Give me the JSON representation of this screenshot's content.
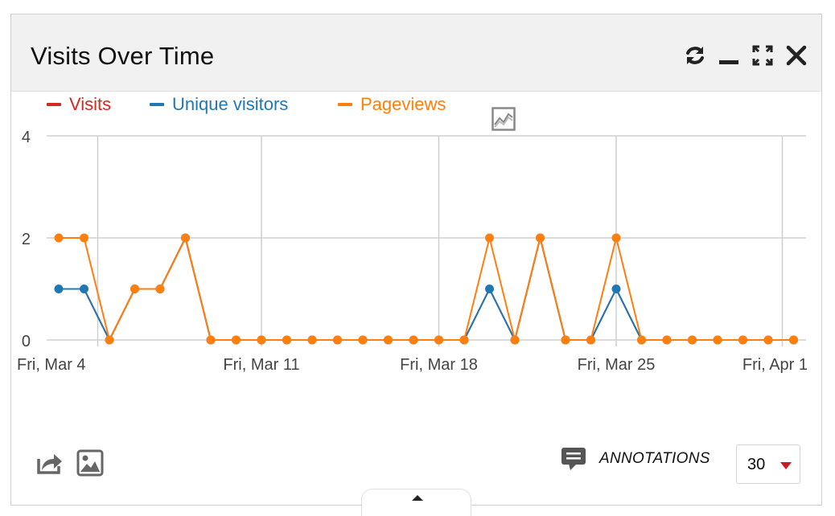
{
  "widget": {
    "title": "Visits Over Time",
    "controls": {
      "refresh_icon": "refresh-icon",
      "minimize_icon": "minimize-icon",
      "maximize_icon": "maximize-icon",
      "close_icon": "close-icon"
    }
  },
  "chart_data": {
    "type": "line",
    "x_tick_labels": [
      "Fri, Mar 4",
      "Fri, Mar 11",
      "Fri, Mar 18",
      "Fri, Mar 25",
      "Fri, Apr 1"
    ],
    "y_tick_labels": [
      "4",
      "2",
      "0"
    ],
    "ylim": [
      0,
      4
    ],
    "x": [
      "Mar 3",
      "Mar 4",
      "Mar 5",
      "Mar 6",
      "Mar 7",
      "Mar 8",
      "Mar 9",
      "Mar 10",
      "Mar 11",
      "Mar 12",
      "Mar 13",
      "Mar 14",
      "Mar 15",
      "Mar 16",
      "Mar 17",
      "Mar 18",
      "Mar 19",
      "Mar 20",
      "Mar 21",
      "Mar 22",
      "Mar 23",
      "Mar 24",
      "Mar 25",
      "Mar 26",
      "Mar 27",
      "Mar 28",
      "Mar 29",
      "Mar 30",
      "Mar 31",
      "Apr 1"
    ],
    "series": [
      {
        "name": "Visits",
        "color": "#d4291f",
        "values": [
          1,
          1,
          0,
          1,
          1,
          2,
          0,
          0,
          0,
          0,
          0,
          0,
          0,
          0,
          0,
          0,
          0,
          1,
          0,
          2,
          0,
          0,
          1,
          0,
          0,
          0,
          0,
          0,
          0,
          0
        ]
      },
      {
        "name": "Unique visitors",
        "color": "#1f78b4",
        "values": [
          1,
          1,
          0,
          1,
          1,
          2,
          0,
          0,
          0,
          0,
          0,
          0,
          0,
          0,
          0,
          0,
          0,
          1,
          0,
          2,
          0,
          0,
          1,
          0,
          0,
          0,
          0,
          0,
          0,
          0
        ]
      },
      {
        "name": "Pageviews",
        "color": "#ff7f0e",
        "values": [
          2,
          2,
          0,
          1,
          1,
          2,
          0,
          0,
          0,
          0,
          0,
          0,
          0,
          0,
          0,
          0,
          0,
          2,
          0,
          2,
          0,
          0,
          2,
          0,
          0,
          0,
          0,
          0,
          0,
          0
        ]
      }
    ],
    "grid": true,
    "legend_placement": "top-left"
  },
  "chart_controls": {
    "chart_type_icon": "line-chart-icon"
  },
  "footer": {
    "export_icon": "share-icon",
    "image_icon": "image-icon",
    "annotations_icon": "comment-icon",
    "annotations_label": "ANNOTATIONS",
    "period_value": "30",
    "toggle_icon": "caret-up-icon"
  }
}
